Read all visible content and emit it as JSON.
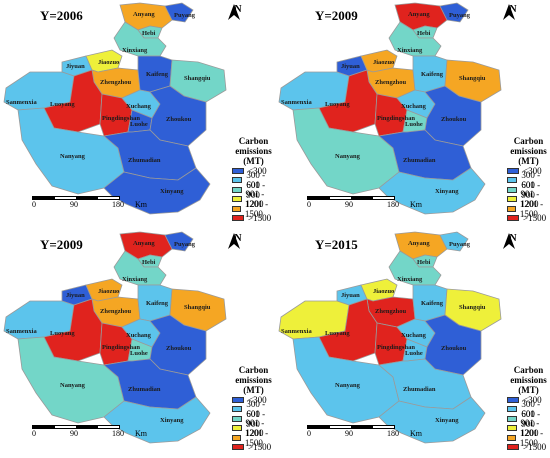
{
  "legend": {
    "title_line1": "Carbon emissions",
    "title_line2": "(MT)",
    "classes": [
      {
        "label": "<300",
        "color": "#2f5fd6"
      },
      {
        "label": "300 - 600",
        "color": "#5cc4ec"
      },
      {
        "label": "601 - 900",
        "color": "#73d6c8"
      },
      {
        "label": "901 - 1200",
        "color": "#eef03a"
      },
      {
        "label": "1201 - 1500",
        "color": "#f5a623"
      },
      {
        "label": ">1500",
        "color": "#e0231e"
      }
    ]
  },
  "north_label": "N",
  "scale": {
    "t0": "0",
    "t1": "90",
    "t2": "180",
    "unit": "Km"
  },
  "cities": [
    "Anyang",
    "Puyang",
    "Hebi",
    "Xinxiang",
    "Jiyuan",
    "Jiaozuo",
    "Zhengzhou",
    "Kaifeng",
    "Shangqiu",
    "Sanmenxia",
    "Luoyang",
    "Pingdingshan",
    "Xuchang",
    "Luohe",
    "Zhoukou",
    "Nanyang",
    "Zhumadian",
    "Xinyang"
  ],
  "panels": [
    {
      "title": "Y=2006",
      "classes": {
        "Anyang": 4,
        "Puyang": 0,
        "Hebi": 2,
        "Xinxiang": 2,
        "Jiyuan": 1,
        "Jiaozuo": 3,
        "Zhengzhou": 4,
        "Kaifeng": 0,
        "Shangqiu": 2,
        "Sanmenxia": 1,
        "Luoyang": 5,
        "Pingdingshan": 5,
        "Xuchang": 1,
        "Luohe": 0,
        "Zhoukou": 0,
        "Nanyang": 1,
        "Zhumadian": 0,
        "Xinyang": 0
      }
    },
    {
      "title": "Y=2009",
      "classes": {
        "Anyang": 5,
        "Puyang": 0,
        "Hebi": 2,
        "Xinxiang": 2,
        "Jiyuan": 0,
        "Jiaozuo": 4,
        "Zhengzhou": 4,
        "Kaifeng": 1,
        "Shangqiu": 4,
        "Sanmenxia": 1,
        "Luoyang": 5,
        "Pingdingshan": 5,
        "Xuchang": 1,
        "Luohe": 2,
        "Zhoukou": 0,
        "Nanyang": 2,
        "Zhumadian": 0,
        "Xinyang": 1
      }
    },
    {
      "title": "Y=2009",
      "classes": {
        "Anyang": 5,
        "Puyang": 0,
        "Hebi": 2,
        "Xinxiang": 2,
        "Jiyuan": 0,
        "Jiaozuo": 4,
        "Zhengzhou": 4,
        "Kaifeng": 1,
        "Shangqiu": 4,
        "Sanmenxia": 1,
        "Luoyang": 5,
        "Pingdingshan": 5,
        "Xuchang": 1,
        "Luohe": 2,
        "Zhoukou": 0,
        "Nanyang": 2,
        "Zhumadian": 0,
        "Xinyang": 1
      }
    },
    {
      "title": "Y=2015",
      "classes": {
        "Anyang": 4,
        "Puyang": 1,
        "Hebi": 2,
        "Xinxiang": 2,
        "Jiyuan": 1,
        "Jiaozuo": 3,
        "Zhengzhou": 5,
        "Kaifeng": 1,
        "Shangqiu": 3,
        "Sanmenxia": 3,
        "Luoyang": 5,
        "Pingdingshan": 5,
        "Xuchang": 1,
        "Luohe": 1,
        "Zhoukou": 0,
        "Nanyang": 1,
        "Zhumadian": 1,
        "Xinyang": 1
      }
    }
  ]
}
